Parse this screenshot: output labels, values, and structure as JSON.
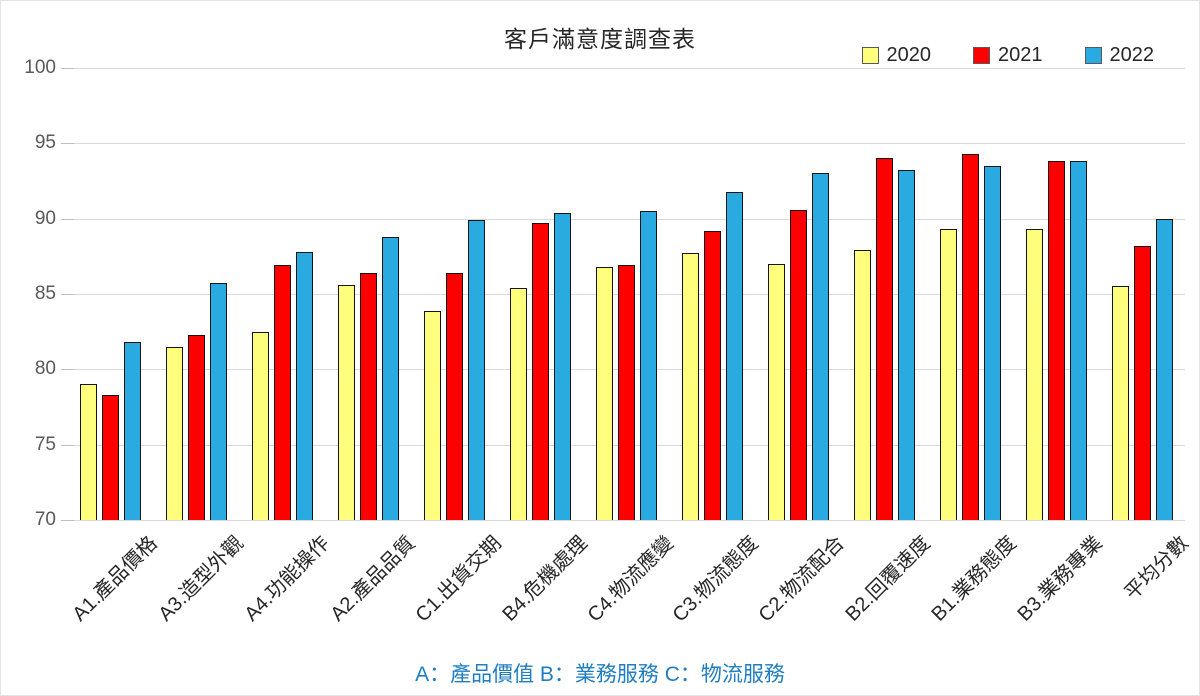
{
  "title": "客戶滿意度調查表",
  "legend": [
    {
      "label": "2020",
      "color": "#FFFF7D"
    },
    {
      "label": "2021",
      "color": "#FF0000"
    },
    {
      "label": "2022",
      "color": "#29ABE2"
    }
  ],
  "footer": {
    "text": "A：產品價值  B：業務服務  C：物流服務",
    "color": "#1F7EC2"
  },
  "colors": {
    "bar_border": "#141414",
    "gridline": "#D9D9D9",
    "tick": "#BFBFBF",
    "y_label": "#595959",
    "x_label": "#262626",
    "series_2020": "#FFFF7D",
    "series_2021": "#FF0000",
    "series_2022": "#29ABE2",
    "footnote": "#1F7EC2"
  },
  "chart_data": {
    "type": "bar",
    "title": "客戶滿意度調查表",
    "categories": [
      "A1.產品價格",
      "A3.造型外觀",
      "A4.功能操作",
      "A2.產品品質",
      "C1.出貨交期",
      "B4.危機處理",
      "C4.物流應變",
      "C3.物流態度",
      "C2.物流配合",
      "B2.回覆速度",
      "B1.業務態度",
      "B3.業務專業",
      "平均分數"
    ],
    "series": [
      {
        "name": "2020",
        "color": "#FFFF7D",
        "values": [
          79.0,
          81.5,
          82.5,
          85.6,
          83.9,
          85.4,
          86.8,
          87.7,
          87.0,
          87.9,
          89.3,
          89.3,
          85.5
        ]
      },
      {
        "name": "2021",
        "color": "#FF0000",
        "values": [
          78.3,
          82.3,
          86.9,
          86.4,
          86.4,
          89.7,
          86.9,
          89.2,
          90.6,
          94.0,
          94.3,
          93.8,
          88.2
        ]
      },
      {
        "name": "2022",
        "color": "#29ABE2",
        "values": [
          81.8,
          85.7,
          87.8,
          88.8,
          89.9,
          90.4,
          90.5,
          91.8,
          93.0,
          93.2,
          93.5,
          93.8,
          90.0
        ]
      }
    ],
    "xlabel": "",
    "ylabel": "",
    "ylim": [
      70,
      100
    ],
    "yticks": [
      70,
      75,
      80,
      85,
      90,
      95,
      100
    ],
    "grid": true,
    "legend_position": "top-right",
    "annotation": "A：產品價值  B：業務服務  C：物流服務"
  }
}
